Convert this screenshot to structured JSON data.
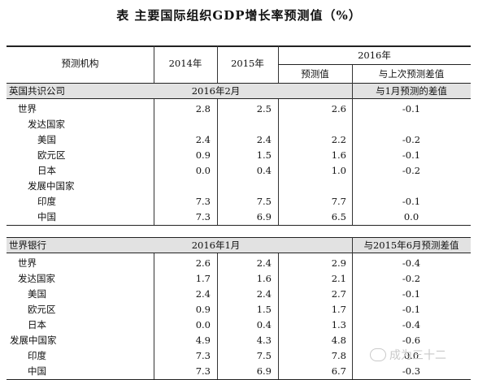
{
  "title": "表  主要国际组织GDP增长率预测值（%）",
  "header": {
    "institution": "预测机构",
    "y2014": "2014年",
    "y2015": "2015年",
    "y2016": "2016年",
    "forecast": "预测值",
    "diff_prev": "与上次预测差值"
  },
  "imf": {
    "name": "英国共识公司",
    "date": "2016年2月",
    "diff_label": "与1月预测的差值",
    "rows": [
      {
        "label": "世界",
        "indent": 1,
        "v14": "2.8",
        "v15": "2.5",
        "v16": "2.6",
        "d": "-0.1"
      },
      {
        "label": "发达国家",
        "indent": 2,
        "v14": "",
        "v15": "",
        "v16": "",
        "d": ""
      },
      {
        "label": "美国",
        "indent": 3,
        "v14": "2.4",
        "v15": "2.4",
        "v16": "2.2",
        "d": "-0.2"
      },
      {
        "label": "欧元区",
        "indent": 3,
        "v14": "0.9",
        "v15": "1.5",
        "v16": "1.6",
        "d": "-0.1"
      },
      {
        "label": "日本",
        "indent": 3,
        "v14": "0.0",
        "v15": "0.4",
        "v16": "1.0",
        "d": "-0.2"
      },
      {
        "label": "发展中国家",
        "indent": 2,
        "v14": "",
        "v15": "",
        "v16": "",
        "d": ""
      },
      {
        "label": "印度",
        "indent": 3,
        "v14": "7.3",
        "v15": "7.5",
        "v16": "7.7",
        "d": "-0.1"
      },
      {
        "label": "中国",
        "indent": 3,
        "v14": "7.3",
        "v15": "6.9",
        "v16": "6.5",
        "d": "0.0"
      }
    ]
  },
  "wb": {
    "name": "世界银行",
    "date": "2016年1月",
    "diff_label": "与2015年6月预测差值",
    "rows": [
      {
        "label": "世界",
        "indent": 1,
        "v14": "2.6",
        "v15": "2.4",
        "v16": "2.9",
        "d": "-0.4"
      },
      {
        "label": "发达国家",
        "indent": 1,
        "v14": "1.7",
        "v15": "1.6",
        "v16": "2.1",
        "d": "-0.2"
      },
      {
        "label": "美国",
        "indent": 2,
        "v14": "2.4",
        "v15": "2.4",
        "v16": "2.7",
        "d": "-0.1"
      },
      {
        "label": "欧元区",
        "indent": 2,
        "v14": "0.9",
        "v15": "1.5",
        "v16": "1.7",
        "d": "-0.1"
      },
      {
        "label": "日本",
        "indent": 2,
        "v14": "0.0",
        "v15": "0.4",
        "v16": "1.3",
        "d": "-0.4"
      },
      {
        "label": "发展中国家",
        "indent": 0,
        "v14": "4.9",
        "v15": "4.3",
        "v16": "4.8",
        "d": "-0.6"
      },
      {
        "label": "印度",
        "indent": 2,
        "v14": "7.3",
        "v15": "7.5",
        "v16": "7.8",
        "d": "0.0"
      },
      {
        "label": "中国",
        "indent": 2,
        "v14": "7.3",
        "v15": "6.9",
        "v16": "6.7",
        "d": "-0.3"
      }
    ]
  },
  "watermark": "成为三十二"
}
